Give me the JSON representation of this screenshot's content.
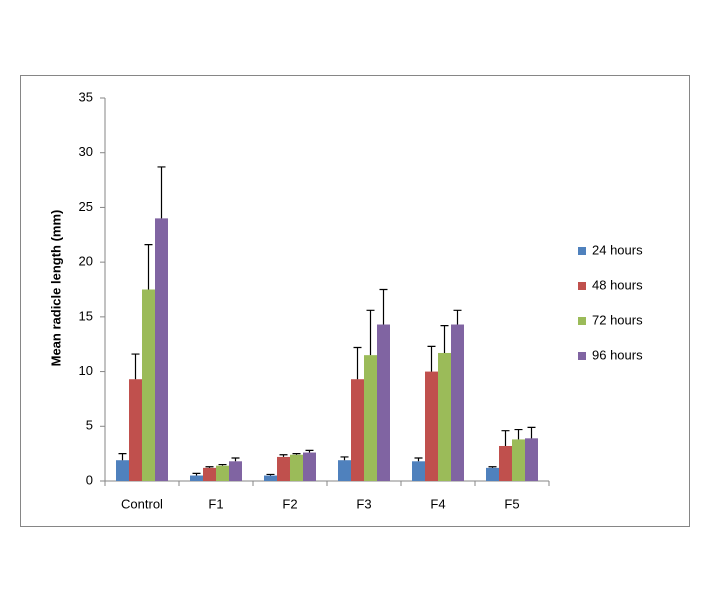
{
  "chart_data": {
    "type": "bar",
    "y_label": "Mean radicle length (mm)",
    "categories": [
      "Control",
      "F1",
      "F2",
      "F3",
      "F4",
      "F5"
    ],
    "series": [
      {
        "name": "24 hours",
        "color": "#4f81bd",
        "values": [
          1.9,
          0.5,
          0.5,
          1.9,
          1.8,
          1.2
        ],
        "errors": [
          0.6,
          0.2,
          0.1,
          0.3,
          0.3,
          0.1
        ]
      },
      {
        "name": "48 hours",
        "color": "#c0504d",
        "values": [
          9.3,
          1.2,
          2.2,
          9.3,
          10.0,
          3.2
        ],
        "errors": [
          2.3,
          0.1,
          0.2,
          2.9,
          2.3,
          1.4
        ]
      },
      {
        "name": "72 hours",
        "color": "#9bbb59",
        "values": [
          17.5,
          1.4,
          2.4,
          11.5,
          11.7,
          3.8
        ],
        "errors": [
          4.1,
          0.1,
          0.1,
          4.1,
          2.5,
          0.9
        ]
      },
      {
        "name": "96 hours",
        "color": "#8064a2",
        "values": [
          24.0,
          1.8,
          2.6,
          14.3,
          14.3,
          3.9
        ],
        "errors": [
          4.7,
          0.3,
          0.2,
          3.2,
          1.3,
          1.0
        ]
      }
    ],
    "ylim": [
      0,
      35
    ],
    "yticks": [
      0,
      5,
      10,
      15,
      20,
      25,
      30,
      35
    ],
    "legend": "right"
  }
}
